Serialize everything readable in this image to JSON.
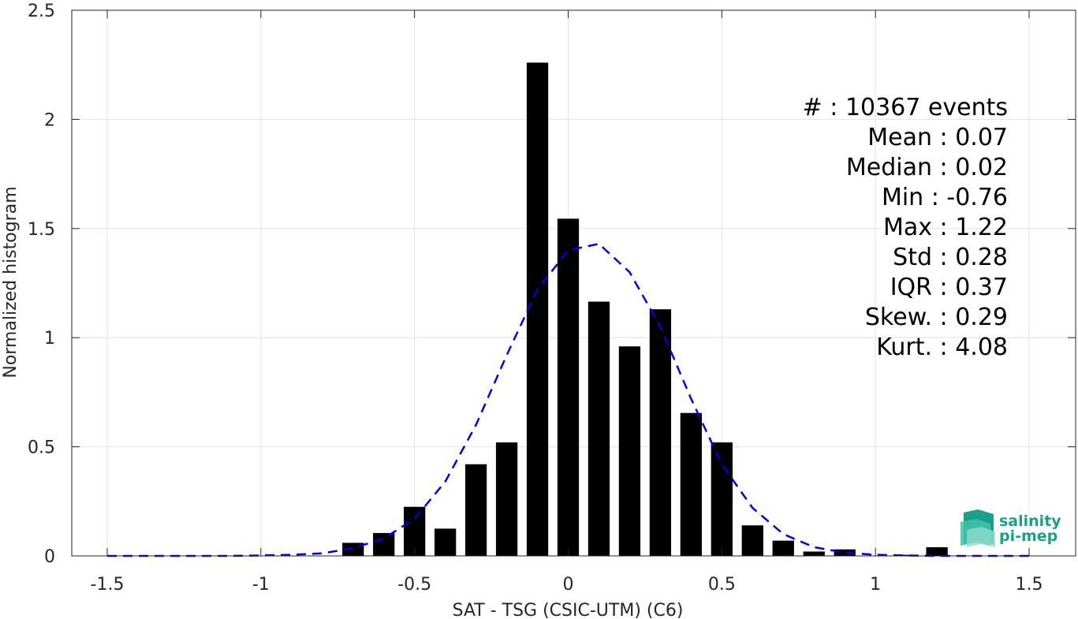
{
  "chart_data": {
    "type": "bar",
    "xlabel": "SAT - TSG (CSIC-UTM) (C6)",
    "ylabel": "Normalized histogram",
    "xlim": [
      -1.5,
      1.5
    ],
    "ylim": [
      0,
      2.5
    ],
    "x_ticks": [
      "-1.5",
      "-1",
      "-0.5",
      "0",
      "0.5",
      "1",
      "1.5"
    ],
    "y_ticks": [
      "0",
      "0.5",
      "1",
      "1.5",
      "2",
      "2.5"
    ],
    "grid": true,
    "bars": {
      "x": [
        -0.7,
        -0.6,
        -0.5,
        -0.4,
        -0.3,
        -0.2,
        -0.1,
        0.0,
        0.1,
        0.2,
        0.3,
        0.4,
        0.5,
        0.6,
        0.7,
        0.8,
        0.9,
        1.0,
        1.1,
        1.2
      ],
      "values": [
        0.06,
        0.105,
        0.225,
        0.125,
        0.42,
        0.52,
        2.26,
        1.545,
        1.165,
        0.96,
        1.13,
        0.655,
        0.52,
        0.14,
        0.07,
        0.02,
        0.03,
        0.0,
        0.005,
        0.04
      ],
      "color": "#000000"
    },
    "fit_curve": {
      "style": "dashed",
      "color": "#0000e0",
      "x": [
        -1.5,
        -1.4,
        -1.3,
        -1.2,
        -1.1,
        -1.0,
        -0.9,
        -0.8,
        -0.7,
        -0.6,
        -0.5,
        -0.4,
        -0.3,
        -0.2,
        -0.1,
        0.0,
        0.1,
        0.2,
        0.3,
        0.4,
        0.5,
        0.6,
        0.7,
        0.8,
        0.9,
        1.0,
        1.1,
        1.2,
        1.3,
        1.4,
        1.5
      ],
      "y": [
        0.0,
        0.0,
        0.0,
        0.0,
        0.0,
        0.002,
        0.005,
        0.012,
        0.035,
        0.08,
        0.17,
        0.34,
        0.6,
        0.92,
        1.22,
        1.4,
        1.43,
        1.3,
        1.05,
        0.72,
        0.42,
        0.22,
        0.1,
        0.04,
        0.015,
        0.005,
        0.002,
        0.0,
        0.0,
        0.0,
        0.0
      ]
    },
    "stats": [
      "#  : 10367 events",
      "Mean : 0.07",
      "Median : 0.02",
      "Min : -0.76",
      "Max : 1.22",
      "Std : 0.28",
      "IQR : 0.37",
      "Skew. : 0.29",
      "Kurt. : 4.08"
    ]
  },
  "logo": {
    "line1": "salinity",
    "line2": "pi-mep",
    "color": "#1aa08a"
  }
}
